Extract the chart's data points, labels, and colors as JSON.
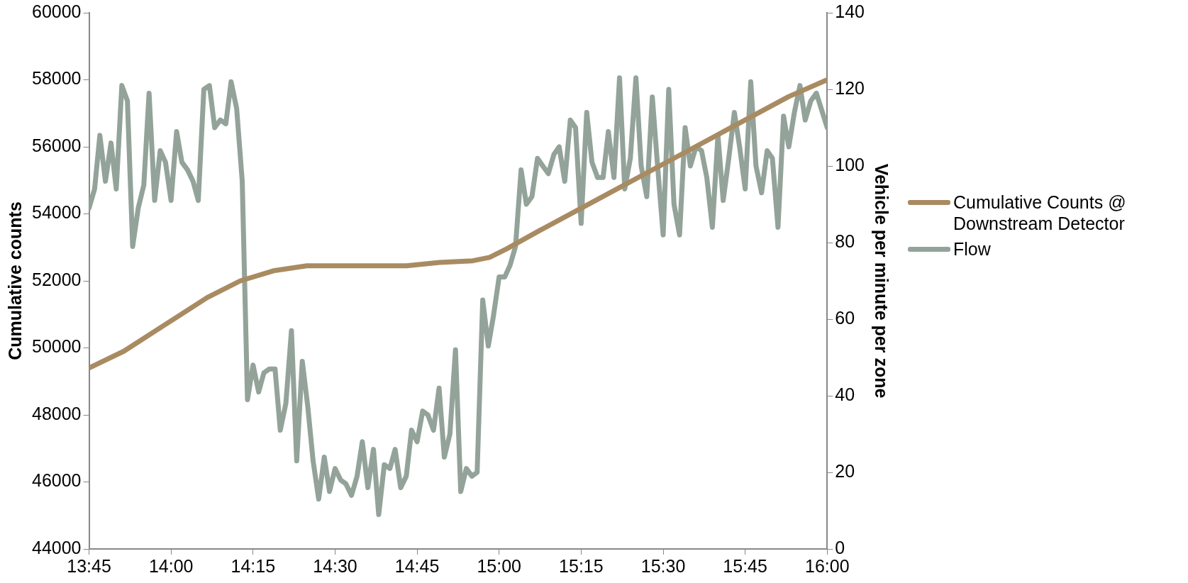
{
  "chart_data": {
    "type": "line",
    "xlim": [
      13.75,
      16
    ],
    "xticks": [
      {
        "value": 13.75,
        "label": "13:45"
      },
      {
        "value": 14,
        "label": "14:00"
      },
      {
        "value": 14.25,
        "label": "14:15"
      },
      {
        "value": 14.5,
        "label": "14:30"
      },
      {
        "value": 14.75,
        "label": "14:45"
      },
      {
        "value": 15,
        "label": "15:00"
      },
      {
        "value": 15.25,
        "label": "15:15"
      },
      {
        "value": 15.5,
        "label": "15:30"
      },
      {
        "value": 15.75,
        "label": "15:45"
      },
      {
        "value": 16,
        "label": "16:00"
      }
    ],
    "ylabel": "Cumulative counts",
    "y2label": "Vehicle per minute per zone",
    "ylim": [
      44000,
      60000
    ],
    "yticks": [
      44000,
      46000,
      48000,
      50000,
      52000,
      54000,
      56000,
      58000,
      60000
    ],
    "y2lim": [
      0,
      140
    ],
    "y2ticks": [
      0,
      20,
      40,
      60,
      80,
      100,
      120,
      140
    ],
    "grid": false,
    "legend": "right",
    "marker": "none",
    "line_style": "solid",
    "series": [
      {
        "name": "Cumulative Counts @ Downstream Detector",
        "color": "#a98b62",
        "x": [
          13.75,
          13.856,
          13.983,
          14.11,
          14.211,
          14.312,
          14.414,
          14.515,
          14.718,
          14.819,
          14.92,
          14.971,
          15.022,
          15.123,
          15.275,
          15.427,
          15.579,
          15.731,
          15.883,
          16
        ],
        "values": [
          49400,
          49900,
          50700,
          51500,
          52000,
          52300,
          52450,
          52450,
          52450,
          52550,
          52600,
          52700,
          52950,
          53500,
          54300,
          55100,
          55900,
          56700,
          57500,
          58000
        ]
      },
      {
        "name": "Flow",
        "color": "#93a39a",
        "axis": "y2",
        "x": [
          13.75,
          13.767,
          13.783,
          13.8,
          13.817,
          13.833,
          13.85,
          13.867,
          13.883,
          13.9,
          13.917,
          13.933,
          13.95,
          13.967,
          13.983,
          14,
          14.017,
          14.033,
          14.05,
          14.067,
          14.083,
          14.1,
          14.117,
          14.133,
          14.15,
          14.167,
          14.183,
          14.2,
          14.217,
          14.233,
          14.25,
          14.267,
          14.283,
          14.3,
          14.317,
          14.333,
          14.35,
          14.367,
          14.383,
          14.4,
          14.417,
          14.433,
          14.45,
          14.467,
          14.483,
          14.5,
          14.517,
          14.533,
          14.55,
          14.567,
          14.583,
          14.6,
          14.617,
          14.633,
          14.65,
          14.667,
          14.683,
          14.7,
          14.717,
          14.733,
          14.75,
          14.767,
          14.783,
          14.8,
          14.817,
          14.833,
          14.85,
          14.867,
          14.883,
          14.9,
          14.917,
          14.933,
          14.95,
          14.967,
          14.983,
          15,
          15.017,
          15.033,
          15.05,
          15.067,
          15.083,
          15.1,
          15.117,
          15.133,
          15.15,
          15.167,
          15.183,
          15.2,
          15.217,
          15.233,
          15.25,
          15.267,
          15.283,
          15.3,
          15.317,
          15.333,
          15.35,
          15.367,
          15.383,
          15.4,
          15.417,
          15.433,
          15.45,
          15.467,
          15.483,
          15.5,
          15.517,
          15.533,
          15.55,
          15.567,
          15.583,
          15.6,
          15.617,
          15.633,
          15.65,
          15.667,
          15.683,
          15.7,
          15.717,
          15.733,
          15.75,
          15.767,
          15.783,
          15.8,
          15.817,
          15.833,
          15.85,
          15.867,
          15.883,
          15.9,
          15.917,
          15.933,
          15.95,
          15.967,
          16
        ],
        "values": [
          89,
          94,
          108,
          96,
          106,
          94,
          121,
          117,
          79,
          89,
          95,
          119,
          91,
          104,
          101,
          91,
          109,
          101,
          99,
          96,
          91,
          120,
          121,
          110,
          112,
          111,
          122,
          115,
          96,
          39,
          48,
          41,
          46,
          47,
          47,
          31,
          38,
          57,
          23,
          49,
          37,
          23,
          13,
          24,
          15,
          21,
          18,
          17,
          14,
          19,
          28,
          16,
          26,
          9,
          22,
          21,
          26,
          16,
          19,
          31,
          28,
          36,
          35,
          31,
          42,
          24,
          30,
          52,
          15,
          21,
          19,
          20,
          65,
          53,
          61,
          71,
          71,
          74,
          79,
          99,
          90,
          92,
          102,
          100,
          98,
          103,
          105,
          96,
          112,
          110,
          85,
          114,
          101,
          97,
          97,
          109,
          97,
          123,
          94,
          102,
          123,
          100,
          92,
          118,
          100,
          82,
          120,
          90,
          82,
          110,
          100,
          105,
          104,
          97,
          84,
          108,
          91,
          102,
          114,
          105,
          94,
          122,
          100,
          93,
          104,
          102,
          84,
          113,
          105,
          114,
          121,
          112,
          117,
          119,
          110
        ]
      }
    ]
  }
}
